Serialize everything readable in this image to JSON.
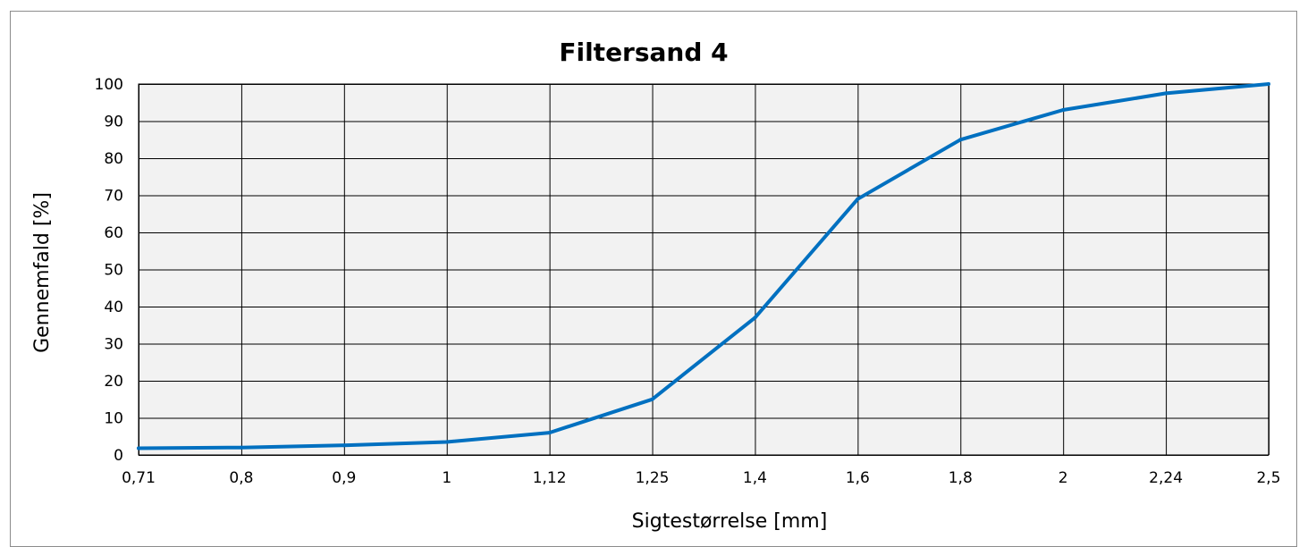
{
  "chart_data": {
    "type": "line",
    "title": "Filtersand 4",
    "xlabel": "Sigtestørrelse [mm]",
    "ylabel": "Gennemfald [%]",
    "categories": [
      "0,71",
      "0,8",
      "0,9",
      "1",
      "1,12",
      "1,25",
      "1,4",
      "1,6",
      "1,8",
      "2",
      "2,24",
      "2,5"
    ],
    "x": [
      0.71,
      0.8,
      0.9,
      1,
      1.12,
      1.25,
      1.4,
      1.6,
      1.8,
      2,
      2.24,
      2.5
    ],
    "series": [
      {
        "values": [
          1.8,
          2.0,
          2.6,
          3.5,
          6.0,
          15.0,
          37.0,
          69.0,
          85.0,
          93.0,
          97.5,
          100.0
        ],
        "color": "#0070C0"
      }
    ],
    "ylim": [
      0,
      100
    ],
    "yticks": [
      0,
      10,
      20,
      30,
      40,
      50,
      60,
      70,
      80,
      90,
      100
    ],
    "grid": true,
    "legend": "none",
    "plot_background": "#F2F2F2",
    "grid_color": "#000000"
  }
}
